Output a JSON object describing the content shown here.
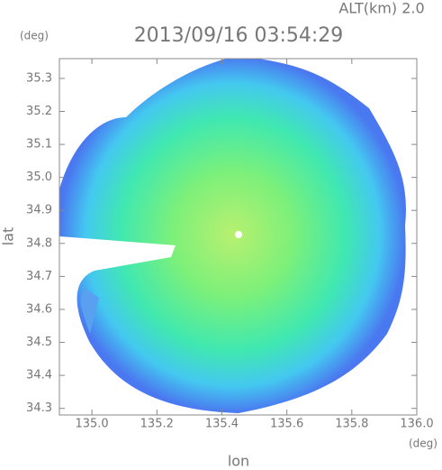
{
  "chart_data": {
    "type": "radar",
    "title": "2013/09/16 03:54:29",
    "altitude_label": "ALT(km) 2.0",
    "xlabel": "lon",
    "ylabel": "lat",
    "x_unit": "(deg)",
    "y_unit": "(deg)",
    "xlim": [
      134.9,
      136.0
    ],
    "ylim": [
      34.28,
      35.36
    ],
    "xticks": [
      {
        "value": 135.0,
        "label": "135.0"
      },
      135.2,
      135.4,
      135.6,
      135.8,
      {
        "value": 136.0,
        "label": "136.0"
      }
    ],
    "yticks": [
      34.3,
      34.4,
      34.5,
      34.6,
      34.7,
      34.8,
      34.9,
      {
        "value": 35.0,
        "label": "35.0"
      },
      35.1,
      35.2,
      35.3
    ]
  }
}
